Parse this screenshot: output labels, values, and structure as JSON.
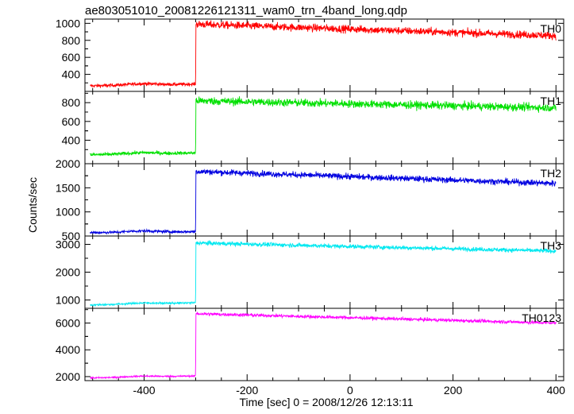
{
  "title": "ae803051010_20081226121311_wam0_trn_4band_long.qdp",
  "xlabel": "Time [sec] 0 = 2008/12/26 12:13:11",
  "ylabel": "Counts/sec",
  "x_ticks": [
    "-400",
    "-200",
    "0",
    "200",
    "400"
  ],
  "chart_data": [
    {
      "type": "line",
      "series": [
        {
          "name": "TH0",
          "color": "#ff0000",
          "x": [
            -505,
            -300,
            -299.5,
            400
          ],
          "y": [
            265,
            285,
            990,
            855
          ]
        }
      ],
      "xlim": [
        -515,
        415
      ],
      "ylim": [
        200,
        1050
      ],
      "yticks": [
        400,
        600,
        800,
        1000
      ],
      "noise": 32,
      "bump_amp": 15,
      "ytick_labels": [
        "400",
        "600",
        "800",
        "1000"
      ]
    },
    {
      "type": "line",
      "series": [
        {
          "name": "TH1",
          "color": "#00e000",
          "x": [
            -505,
            -300,
            -299.5,
            400
          ],
          "y": [
            245,
            265,
            820,
            745
          ]
        }
      ],
      "xlim": [
        -515,
        415
      ],
      "ylim": [
        150,
        920
      ],
      "yticks": [
        400,
        600,
        800
      ],
      "noise": 30,
      "bump_amp": 12,
      "ytick_labels": [
        "400",
        "600",
        "800"
      ]
    },
    {
      "type": "line",
      "series": [
        {
          "name": "TH2",
          "color": "#0000e0",
          "x": [
            -505,
            -300,
            -299.5,
            400
          ],
          "y": [
            570,
            590,
            1840,
            1590
          ]
        }
      ],
      "xlim": [
        -515,
        415
      ],
      "ylim": [
        500,
        2000
      ],
      "yticks": [
        500,
        1000,
        1500,
        2000
      ],
      "noise": 45,
      "bump_amp": 25,
      "ytick_labels": [
        "500",
        "1000",
        "1500",
        "2000"
      ]
    },
    {
      "type": "line",
      "series": [
        {
          "name": "TH3",
          "color": "#00e8f0",
          "x": [
            -505,
            -300,
            -299.5,
            400
          ],
          "y": [
            820,
            900,
            3050,
            2760
          ]
        }
      ],
      "xlim": [
        -515,
        415
      ],
      "ylim": [
        700,
        3300
      ],
      "yticks": [
        1000,
        2000,
        3000
      ],
      "noise": 55,
      "bump_amp": 30,
      "ytick_labels": [
        "1000",
        "2000",
        "3000"
      ]
    },
    {
      "type": "line",
      "series": [
        {
          "name": "TH0123",
          "color": "#ff00ff",
          "x": [
            -505,
            -300,
            -299.5,
            400
          ],
          "y": [
            1900,
            2050,
            6700,
            6000
          ]
        }
      ],
      "xlim": [
        -515,
        415
      ],
      "ylim": [
        1700,
        7100
      ],
      "yticks": [
        2000,
        4000,
        6000
      ],
      "noise": 90,
      "bump_amp": 60,
      "ytick_labels": [
        "2000",
        "4000",
        "6000"
      ]
    }
  ]
}
